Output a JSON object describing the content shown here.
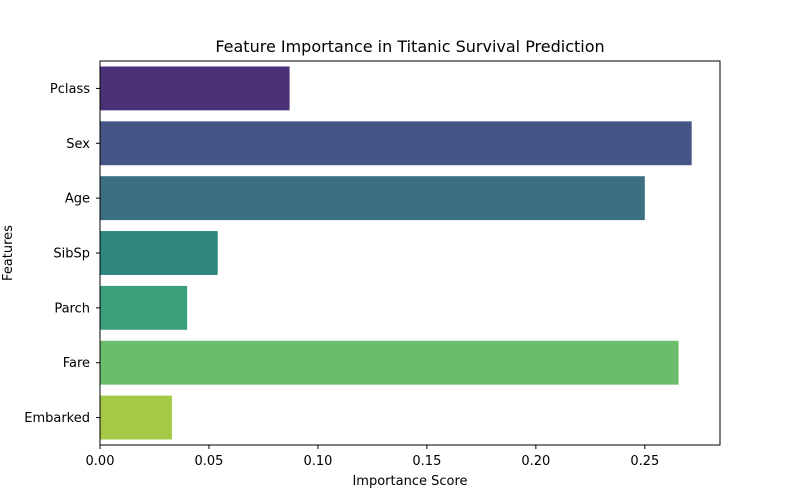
{
  "chart_data": {
    "type": "bar",
    "orientation": "horizontal",
    "title": "Feature Importance in Titanic Survival Prediction",
    "xlabel": "Importance Score",
    "ylabel": "Features",
    "categories": [
      "Pclass",
      "Sex",
      "Age",
      "SibSp",
      "Parch",
      "Fare",
      "Embarked"
    ],
    "values": [
      0.087,
      0.2715,
      0.25,
      0.054,
      0.04,
      0.2655,
      0.033
    ],
    "colors": [
      "#4b3178",
      "#455686",
      "#3b6f81",
      "#2e857c",
      "#3aa17a",
      "#6bbd6c",
      "#a3c947"
    ],
    "xlim": [
      0,
      0.2845
    ],
    "xticks": [
      0.0,
      0.05,
      0.1,
      0.15,
      0.2,
      0.25
    ],
    "xtick_labels": [
      "0.00",
      "0.05",
      "0.10",
      "0.15",
      "0.20",
      "0.25"
    ],
    "grid": false,
    "legend": "none"
  }
}
